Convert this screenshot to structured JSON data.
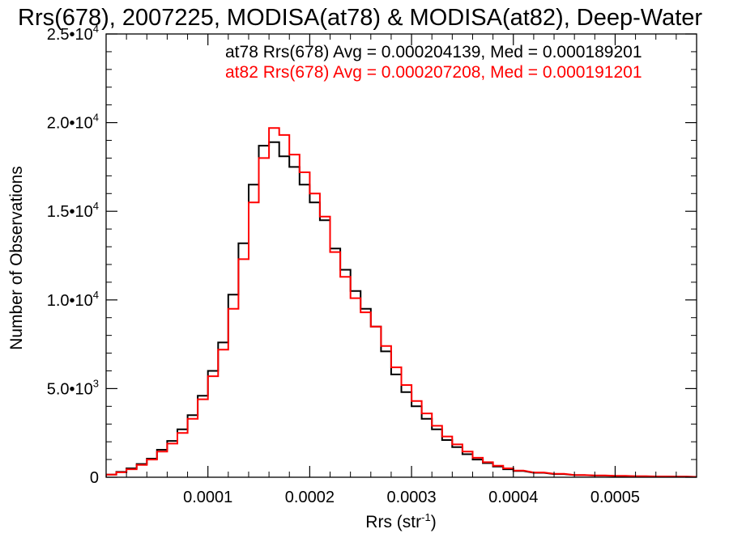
{
  "chart_data": {
    "type": "line",
    "title": "Rrs(678), 2007225, MODISA(at78) & MODISA(at82), Deep-Water",
    "xlabel": "Rrs (str",
    "xlabel_sup": "-1",
    "xlabel_close": ")",
    "ylabel": "Number of Observations",
    "xlim": [
      0.0,
      0.00058
    ],
    "ylim": [
      0,
      25000
    ],
    "grid": false,
    "x_ticks": [
      {
        "value": 0.0001,
        "label": "0.0001"
      },
      {
        "value": 0.0002,
        "label": "0.0002"
      },
      {
        "value": 0.0003,
        "label": "0.0003"
      },
      {
        "value": 0.0004,
        "label": "0.0004"
      },
      {
        "value": 0.0005,
        "label": "0.0005"
      }
    ],
    "y_ticks": [
      {
        "value": 0,
        "mantissa": "0",
        "exp": ""
      },
      {
        "value": 5000,
        "mantissa": "5.0•10",
        "exp": "3"
      },
      {
        "value": 10000,
        "mantissa": "1.0•10",
        "exp": "4"
      },
      {
        "value": 15000,
        "mantissa": "1.5•10",
        "exp": "4"
      },
      {
        "value": 20000,
        "mantissa": "2.0•10",
        "exp": "4"
      },
      {
        "value": 25000,
        "mantissa": "2.5•10",
        "exp": "4"
      }
    ],
    "annotations": [
      {
        "text": "at78 Rrs(678) Avg = 0.000204139, Med = 0.000189201",
        "color": "#000000"
      },
      {
        "text": "at82 Rrs(678) Avg = 0.000207208, Med = 0.000191201",
        "color": "#ff0000"
      }
    ],
    "series": [
      {
        "color": "#000000",
        "x": [
          0.0,
          1e-05,
          2e-05,
          3e-05,
          4e-05,
          5e-05,
          6e-05,
          7e-05,
          8e-05,
          9e-05,
          0.0001,
          0.00011,
          0.00012,
          0.00013,
          0.00014,
          0.00015,
          0.00016,
          0.00017,
          0.00018,
          0.00019,
          0.0002,
          0.00021,
          0.00022,
          0.00023,
          0.00024,
          0.00025,
          0.00026,
          0.00027,
          0.00028,
          0.00029,
          0.0003,
          0.00031,
          0.00032,
          0.00033,
          0.00034,
          0.00035,
          0.00036,
          0.00037,
          0.00038,
          0.00039,
          0.0004,
          0.00042,
          0.00044,
          0.00046,
          0.00048,
          0.0005,
          0.00052,
          0.00054,
          0.00056,
          0.00058
        ],
        "y": [
          150,
          300,
          500,
          750,
          1050,
          1550,
          2050,
          2700,
          3500,
          4600,
          6000,
          7600,
          10300,
          13200,
          16500,
          18700,
          18900,
          18100,
          17500,
          16500,
          15500,
          14500,
          12900,
          11700,
          10500,
          9500,
          8500,
          7100,
          5800,
          4800,
          4000,
          3300,
          2700,
          2100,
          1700,
          1300,
          1000,
          800,
          600,
          450,
          350,
          250,
          180,
          120,
          90,
          70,
          50,
          40,
          30,
          20
        ]
      },
      {
        "color": "#ff0000",
        "x": [
          0.0,
          1e-05,
          2e-05,
          3e-05,
          4e-05,
          5e-05,
          6e-05,
          7e-05,
          8e-05,
          9e-05,
          0.0001,
          0.00011,
          0.00012,
          0.00013,
          0.00014,
          0.00015,
          0.00016,
          0.00017,
          0.00018,
          0.00019,
          0.0002,
          0.00021,
          0.00022,
          0.00023,
          0.00024,
          0.00025,
          0.00026,
          0.00027,
          0.00028,
          0.00029,
          0.0003,
          0.00031,
          0.00032,
          0.00033,
          0.00034,
          0.00035,
          0.00036,
          0.00037,
          0.00038,
          0.00039,
          0.0004,
          0.00042,
          0.00044,
          0.00046,
          0.00048,
          0.0005,
          0.00052,
          0.00054,
          0.00056,
          0.00058
        ],
        "y": [
          150,
          280,
          450,
          700,
          1000,
          1450,
          1900,
          2500,
          3300,
          4400,
          5700,
          7200,
          9500,
          12300,
          15500,
          18000,
          19700,
          19300,
          18200,
          17200,
          16000,
          14700,
          12700,
          11300,
          10100,
          9300,
          8500,
          7400,
          6200,
          5200,
          4300,
          3600,
          2900,
          2300,
          1850,
          1450,
          1100,
          850,
          650,
          500,
          380,
          270,
          190,
          130,
          100,
          80,
          60,
          45,
          35,
          25
        ]
      }
    ]
  }
}
